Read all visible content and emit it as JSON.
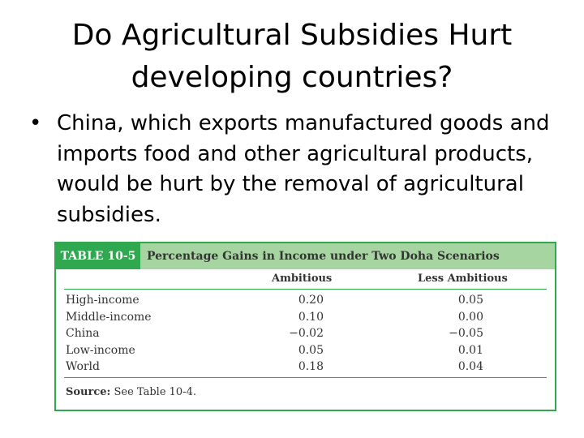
{
  "title": {
    "line1": "Do Agricultural Subsidies Hurt",
    "line2": "developing countries?"
  },
  "bullet": {
    "marker": "•",
    "text": "China, which exports manufactured goods and imports food and other agricultural products, would be hurt by the removal of agricultural subsidies."
  },
  "table": {
    "label": "TABLE 10-5",
    "title": "Percentage Gains in Income under Two Doha Scenarios",
    "columns": [
      "Ambitious",
      "Less Ambitious"
    ],
    "rows": [
      {
        "name": "High-income",
        "ambitious": "0.20",
        "less": "0.05"
      },
      {
        "name": "Middle-income",
        "ambitious": "0.10",
        "less": "0.00"
      },
      {
        "name": "China",
        "ambitious": "−0.02",
        "less": "−0.05"
      },
      {
        "name": "Low-income",
        "ambitious": "0.05",
        "less": "0.01"
      },
      {
        "name": "World",
        "ambitious": "0.18",
        "less": "0.04"
      }
    ],
    "source_label": "Source:",
    "source_text": "See Table 10-4."
  }
}
